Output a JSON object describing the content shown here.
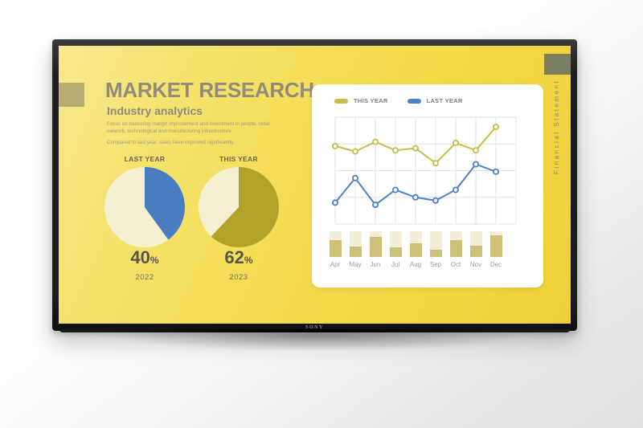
{
  "device": {
    "brand": "SONY"
  },
  "slide": {
    "title": "MARKET RESEARCH",
    "subtitle": "Industry analytics",
    "paragraphs": [
      "Focus on balancing margin improvement and investment in people, retail network, technological and manufacturing infrastructure.",
      "Compared to last year, sales have improved significantly."
    ],
    "side_label": "Financial Statement",
    "colors": {
      "screen_yellow": "#F3DA48",
      "title_gray": "#8F8C7E",
      "corner_rect": "#7B7E61"
    }
  },
  "chart_data": [
    {
      "type": "pie",
      "title": "LAST YEAR",
      "percent": "40",
      "unit": "%",
      "year": "2022",
      "slices": [
        {
          "label": "highlighted share",
          "value": 40,
          "color": "#4A7CC2"
        },
        {
          "label": "remainder",
          "value": 60,
          "color": "#F5F0D2"
        }
      ]
    },
    {
      "type": "pie",
      "title": "THIS YEAR",
      "percent": "62",
      "unit": "%",
      "year": "2023",
      "slices": [
        {
          "label": "highlighted share",
          "value": 62,
          "color": "#B1A22B"
        },
        {
          "label": "remainder",
          "value": 38,
          "color": "#F5F0D2"
        }
      ]
    },
    {
      "type": "line",
      "categories": [
        "Apr",
        "May",
        "Jun",
        "Jul",
        "Aug",
        "Sep",
        "Oct",
        "Nov",
        "Dec"
      ],
      "series": [
        {
          "name": "THIS YEAR",
          "color": "#C9BC4A",
          "values": [
            73,
            68,
            77,
            69,
            71,
            57,
            76,
            69,
            91
          ]
        },
        {
          "name": "LAST YEAR",
          "color": "#4C82C4",
          "values": [
            20,
            43,
            18,
            32,
            25,
            22,
            32,
            56,
            49
          ]
        }
      ],
      "ylim": [
        0,
        100
      ],
      "grid": true,
      "legend_position": "top",
      "grid_color": "#E2E2E2"
    },
    {
      "type": "bar",
      "categories": [
        "Apr",
        "May",
        "Jun",
        "Jul",
        "Aug",
        "Sep",
        "Oct",
        "Nov",
        "Dec"
      ],
      "values": [
        66,
        42,
        79,
        39,
        53,
        28,
        66,
        45,
        84
      ],
      "ylim": [
        0,
        100
      ],
      "colors": {
        "fill": "#CDC17A",
        "track": "#F2EED8"
      }
    }
  ]
}
